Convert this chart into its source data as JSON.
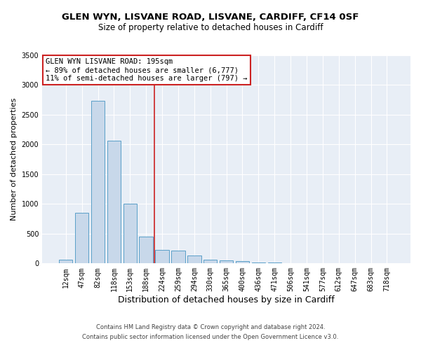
{
  "title1": "GLEN WYN, LISVANE ROAD, LISVANE, CARDIFF, CF14 0SF",
  "title2": "Size of property relative to detached houses in Cardiff",
  "xlabel": "Distribution of detached houses by size in Cardiff",
  "ylabel": "Number of detached properties",
  "categories": [
    "12sqm",
    "47sqm",
    "82sqm",
    "118sqm",
    "153sqm",
    "188sqm",
    "224sqm",
    "259sqm",
    "294sqm",
    "330sqm",
    "365sqm",
    "400sqm",
    "436sqm",
    "471sqm",
    "506sqm",
    "541sqm",
    "577sqm",
    "612sqm",
    "647sqm",
    "683sqm",
    "718sqm"
  ],
  "values": [
    60,
    850,
    2730,
    2060,
    1010,
    455,
    230,
    220,
    130,
    65,
    55,
    35,
    10,
    15,
    5,
    0,
    0,
    0,
    0,
    0,
    0
  ],
  "bar_color": "#c8d8ea",
  "bar_edge_color": "#5a9fc8",
  "vline_x": 5.5,
  "vline_color": "#cc2222",
  "annotation_line1": "GLEN WYN LISVANE ROAD: 195sqm",
  "annotation_line2": "← 89% of detached houses are smaller (6,777)",
  "annotation_line3": "11% of semi-detached houses are larger (797) →",
  "ylim": [
    0,
    3500
  ],
  "yticks": [
    0,
    500,
    1000,
    1500,
    2000,
    2500,
    3000,
    3500
  ],
  "footnote1": "Contains HM Land Registry data © Crown copyright and database right 2024.",
  "footnote2": "Contains public sector information licensed under the Open Government Licence v3.0.",
  "bg_color": "#e8eef6",
  "grid_color": "#ffffff",
  "title1_fontsize": 9.5,
  "title2_fontsize": 8.5,
  "xlabel_fontsize": 9,
  "ylabel_fontsize": 8,
  "tick_fontsize": 7,
  "annot_fontsize": 7.5,
  "footnote_fontsize": 6
}
